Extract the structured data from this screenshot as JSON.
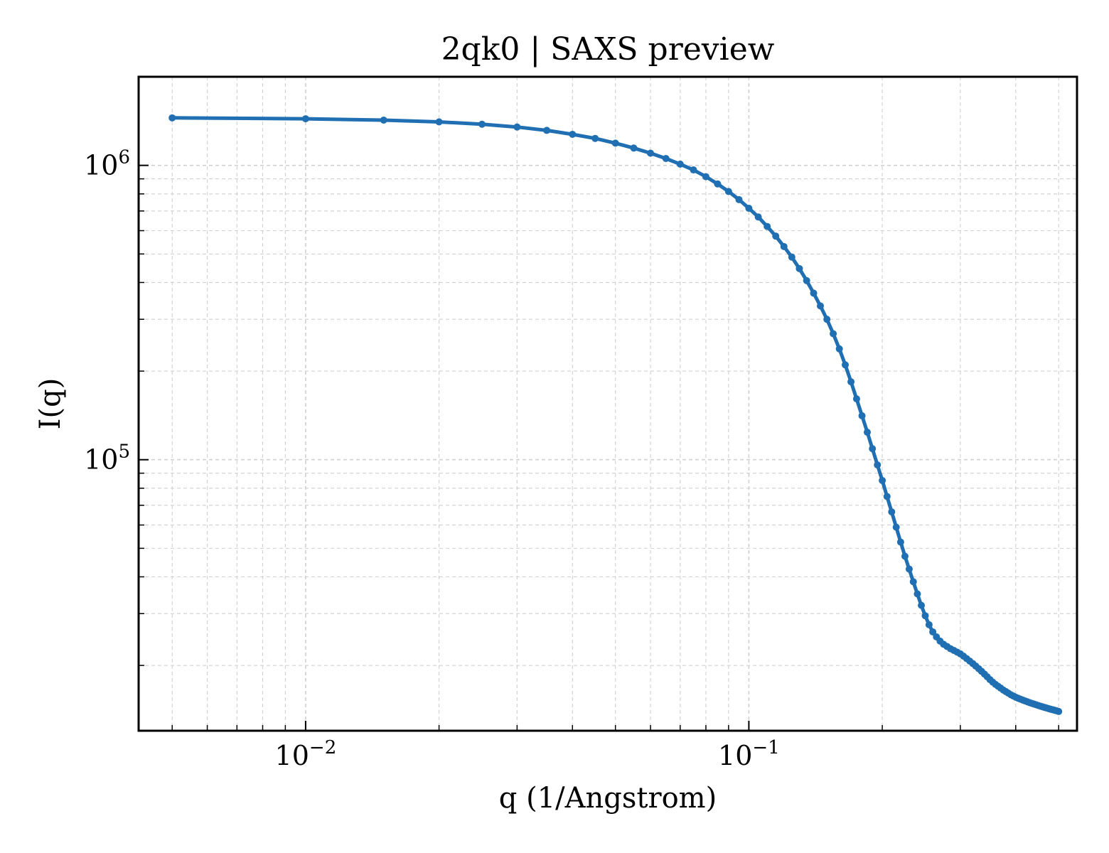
{
  "chart_data": {
    "type": "line",
    "title": "2qk0 | SAXS preview",
    "xlabel": "q (1/Angstrom)",
    "ylabel": "I(q)",
    "xscale": "log",
    "yscale": "log",
    "xlim": [
      0.0042,
      0.55
    ],
    "ylim": [
      12000,
      2000000
    ],
    "grid": true,
    "legend": "none",
    "x_ticks": [
      {
        "value": 0.01,
        "base": "10",
        "exp": "−2"
      },
      {
        "value": 0.1,
        "base": "10",
        "exp": "−1"
      }
    ],
    "y_ticks": [
      {
        "value": 100000,
        "base": "10",
        "exp": "5"
      },
      {
        "value": 1000000,
        "base": "10",
        "exp": "6"
      }
    ],
    "series": [
      {
        "color": "#1f6fb2",
        "marker": "circle",
        "x": [
          0.005,
          0.01,
          0.015,
          0.02,
          0.025,
          0.03,
          0.035,
          0.04,
          0.045,
          0.05,
          0.055,
          0.06,
          0.065,
          0.07,
          0.075,
          0.08,
          0.085,
          0.09,
          0.095,
          0.1,
          0.105,
          0.11,
          0.115,
          0.12,
          0.125,
          0.13,
          0.135,
          0.14,
          0.145,
          0.15,
          0.155,
          0.16,
          0.165,
          0.17,
          0.175,
          0.18,
          0.185,
          0.19,
          0.195,
          0.2,
          0.205,
          0.21,
          0.215,
          0.22,
          0.225,
          0.23,
          0.235,
          0.24,
          0.245,
          0.25,
          0.255,
          0.26,
          0.265,
          0.27,
          0.275,
          0.28,
          0.285,
          0.29,
          0.295,
          0.3,
          0.305,
          0.31,
          0.315,
          0.32,
          0.325,
          0.33,
          0.335,
          0.34,
          0.345,
          0.35,
          0.355,
          0.36,
          0.365,
          0.37,
          0.375,
          0.38,
          0.385,
          0.39,
          0.395,
          0.4,
          0.405,
          0.41,
          0.415,
          0.42,
          0.425,
          0.43,
          0.435,
          0.44,
          0.445,
          0.45,
          0.455,
          0.46,
          0.465,
          0.47,
          0.475,
          0.48,
          0.485,
          0.49,
          0.495,
          0.5
        ],
        "y": [
          1450000,
          1440000,
          1425000,
          1405000,
          1380000,
          1350000,
          1315000,
          1275000,
          1235000,
          1190000,
          1145000,
          1100000,
          1055000,
          1010000,
          965000,
          915000,
          865000,
          815000,
          765000,
          715000,
          668000,
          620000,
          575000,
          530000,
          488000,
          446000,
          406000,
          368000,
          333000,
          300000,
          268000,
          238000,
          210000,
          184000,
          161000,
          141000,
          124000,
          109000,
          96000,
          85000,
          75000,
          66500,
          59000,
          52500,
          47000,
          42500,
          38500,
          35000,
          32000,
          29500,
          27500,
          26000,
          25000,
          24200,
          23600,
          23200,
          22800,
          22500,
          22200,
          21900,
          21500,
          21100,
          20700,
          20300,
          19900,
          19500,
          19100,
          18700,
          18300,
          17900,
          17550,
          17250,
          17000,
          16750,
          16500,
          16300,
          16100,
          15900,
          15750,
          15600,
          15480,
          15360,
          15250,
          15150,
          15050,
          14950,
          14860,
          14780,
          14700,
          14620,
          14540,
          14470,
          14400,
          14330,
          14260,
          14200,
          14140,
          14080,
          14020,
          13950
        ]
      }
    ]
  }
}
